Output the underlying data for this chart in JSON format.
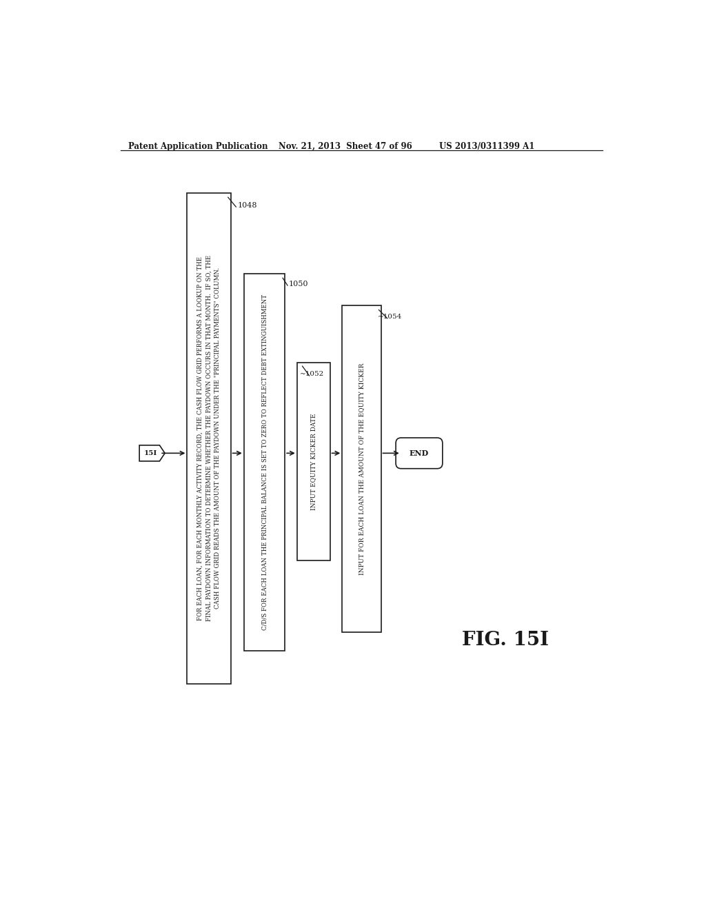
{
  "header_left": "Patent Application Publication",
  "header_mid": "Nov. 21, 2013  Sheet 47 of 96",
  "header_right": "US 2013/0311399 A1",
  "fig_label": "FIG. 15I",
  "connector_label": "15I",
  "box1048_label": "1048",
  "box1048_text": "FOR EACH LOAN, FOR EACH MONTHLY ACTIVITY RECORD, THE CASH FLOW GRID PERFORMS A LOOKUP ON THE\nFINAL PAYDOWN INFORMATION TO DETERMINE WHETHER THE PAYDOWN OCCURS IN THAT MONTH.  IF SO, THE\nCASH FLOW GRID READS THE AMOUNT OF THE PAYDOWN UNDER THE \"PRINCIPAL PAYMENTS\" COLUMN.",
  "box1050_label": "1050",
  "box1050_text": "C/D/S FOR EACH LOAN THE PRINCIPAL BALANCE IS SET TO ZERO TO REFLECT DEBT EXTINGUISHMENT",
  "box1052_label": "1052",
  "box1052_text": "INPUT EQUITY KICKER DATE",
  "box1054_label": "1054",
  "box1054_text": "INPUT FOR EACH LOAN THE AMOUNT OF THE EQUITY KICKER",
  "end_text": "END",
  "bg_color": "#ffffff",
  "line_color": "#1a1a1a",
  "text_color": "#1a1a1a"
}
